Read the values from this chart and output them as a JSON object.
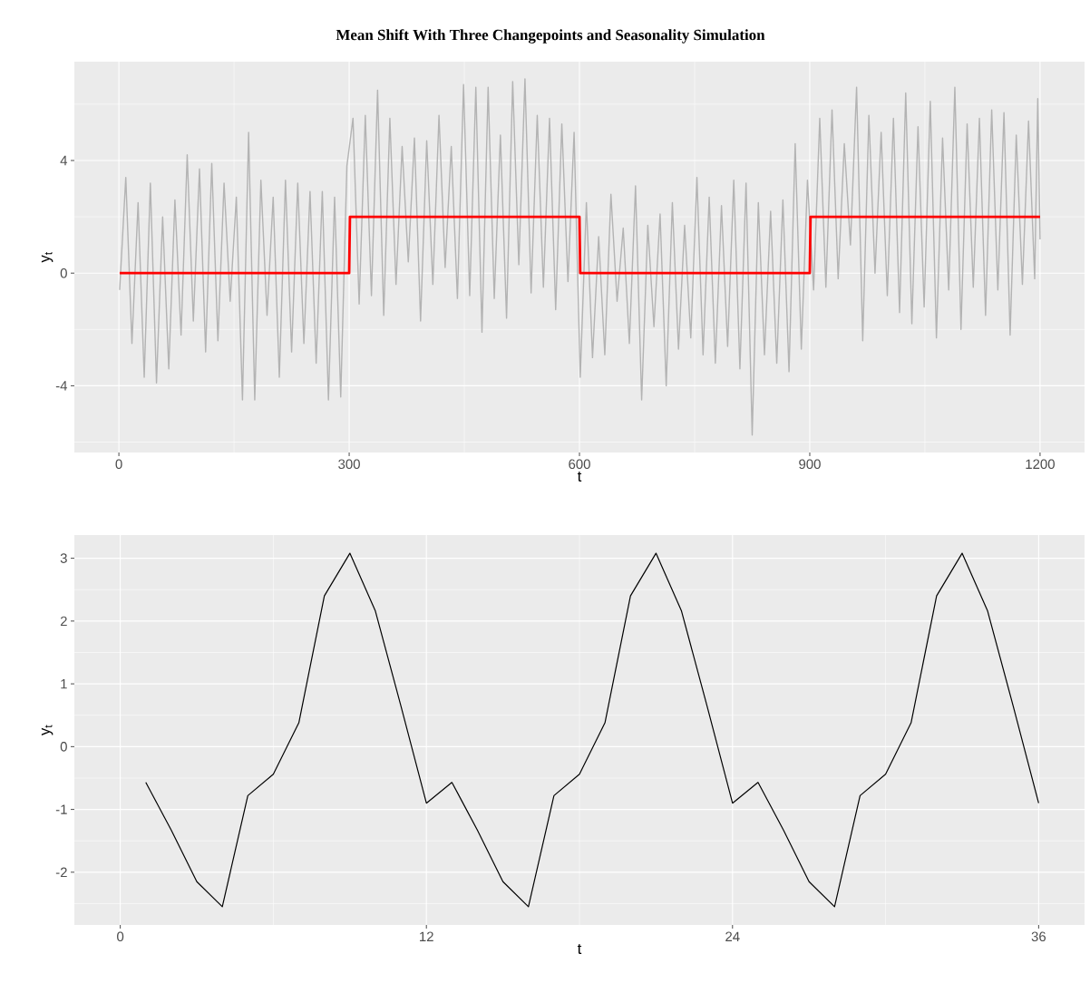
{
  "chart_data": [
    {
      "type": "line",
      "title": "Mean Shift With Three Changepoints and Seasonality Simulation",
      "xlabel": "t",
      "ylabel": "y$_{t}$",
      "xlim": [
        -58,
        1258
      ],
      "ylim": [
        -6.37,
        7.51
      ],
      "xticks": [
        0,
        300,
        600,
        900,
        1200
      ],
      "yticks": [
        -4,
        0,
        4
      ],
      "grid": true,
      "series": [
        {
          "color": "#b3b3b3",
          "x": [
            1,
            9,
            17,
            25,
            33,
            41,
            49,
            57,
            65,
            73,
            81,
            89,
            97,
            105,
            113,
            121,
            129,
            137,
            145,
            153,
            161,
            169,
            177,
            185,
            193,
            201,
            209,
            217,
            225,
            233,
            241,
            249,
            257,
            265,
            273,
            281,
            289,
            297,
            305,
            313,
            321,
            329,
            337,
            345,
            353,
            361,
            369,
            377,
            385,
            393,
            401,
            409,
            417,
            425,
            433,
            441,
            449,
            457,
            465,
            473,
            481,
            489,
            497,
            505,
            513,
            521,
            529,
            537,
            545,
            553,
            561,
            569,
            577,
            585,
            593,
            601,
            609,
            617,
            625,
            633,
            641,
            649,
            657,
            665,
            673,
            681,
            689,
            697,
            705,
            713,
            721,
            729,
            737,
            745,
            753,
            761,
            769,
            777,
            785,
            793,
            801,
            809,
            817,
            825,
            833,
            841,
            849,
            857,
            865,
            873,
            881,
            889,
            897,
            905,
            913,
            921,
            929,
            937,
            945,
            953,
            961,
            969,
            977,
            985,
            993,
            1001,
            1009,
            1017,
            1025,
            1033,
            1041,
            1049,
            1057,
            1065,
            1073,
            1081,
            1089,
            1097,
            1105,
            1113,
            1121,
            1129,
            1137,
            1145,
            1153,
            1161,
            1169,
            1177,
            1185,
            1193,
            1197,
            1200
          ],
          "values": [
            -0.6,
            3.4,
            -2.5,
            2.5,
            -3.7,
            3.2,
            -3.9,
            2.0,
            -3.4,
            2.6,
            -2.2,
            4.2,
            -1.7,
            3.7,
            -2.8,
            3.9,
            -2.4,
            3.2,
            -1.0,
            2.7,
            -4.5,
            5.0,
            -4.5,
            3.3,
            -1.5,
            2.7,
            -3.7,
            3.3,
            -2.8,
            3.2,
            -2.5,
            2.9,
            -3.2,
            2.9,
            -4.5,
            2.7,
            -4.4,
            3.8,
            5.5,
            -1.1,
            5.6,
            -0.8,
            6.5,
            -1.5,
            5.5,
            -0.4,
            4.5,
            0.4,
            4.8,
            -1.7,
            4.7,
            -0.4,
            5.6,
            0.2,
            4.5,
            -0.9,
            6.7,
            -0.8,
            6.6,
            -2.1,
            6.6,
            -0.9,
            4.9,
            -1.6,
            6.8,
            0.3,
            6.9,
            -0.7,
            5.6,
            -0.5,
            5.5,
            -1.3,
            5.3,
            -0.3,
            5.0,
            -3.7,
            2.5,
            -3.0,
            1.3,
            -2.9,
            2.8,
            -1.0,
            1.6,
            -2.5,
            3.1,
            -4.5,
            1.7,
            -1.9,
            2.1,
            -4.0,
            2.5,
            -2.7,
            1.7,
            -2.3,
            3.4,
            -2.9,
            2.7,
            -3.2,
            2.4,
            -2.6,
            3.3,
            -3.4,
            3.2,
            -5.75,
            2.5,
            -2.9,
            2.2,
            -3.2,
            2.6,
            -3.5,
            4.6,
            -2.7,
            3.3,
            -0.6,
            5.5,
            -0.5,
            5.8,
            -0.2,
            4.6,
            1.0,
            6.6,
            -2.4,
            5.6,
            0.0,
            5.0,
            -0.8,
            5.5,
            -1.4,
            6.4,
            -1.8,
            5.2,
            -1.2,
            6.1,
            -2.3,
            4.8,
            -0.6,
            6.6,
            -2.0,
            5.3,
            -0.5,
            5.5,
            -1.5,
            5.8,
            -0.6,
            5.7,
            -2.2,
            4.9,
            -0.4,
            5.4,
            -0.2,
            6.2,
            1.2
          ]
        },
        {
          "color": "#ff0000",
          "x": [
            1,
            300,
            301,
            600,
            601,
            900,
            901,
            1200
          ],
          "values": [
            0,
            0,
            2,
            2,
            0,
            0,
            2,
            2
          ]
        }
      ]
    },
    {
      "type": "line",
      "xlabel": "t",
      "ylabel": "y$_{t}$",
      "xlim": [
        -1.8,
        37.8
      ],
      "ylim": [
        -2.84,
        3.37
      ],
      "xticks": [
        0,
        12,
        24,
        36
      ],
      "yticks": [
        -2,
        -1,
        0,
        1,
        2,
        3
      ],
      "grid": true,
      "x": [
        1,
        2,
        3,
        4,
        5,
        6,
        7,
        8,
        9,
        10,
        11,
        12,
        13,
        14,
        15,
        16,
        17,
        18,
        19,
        20,
        21,
        22,
        23,
        24,
        25,
        26,
        27,
        28,
        29,
        30,
        31,
        32,
        33,
        34,
        35,
        36
      ],
      "series": [
        {
          "color": "#000000",
          "values": [
            -0.57,
            -1.33,
            -2.15,
            -2.55,
            -0.78,
            -0.44,
            0.38,
            2.4,
            3.08,
            2.16,
            0.65,
            -0.9,
            -0.57,
            -1.33,
            -2.15,
            -2.55,
            -0.78,
            -0.44,
            0.38,
            2.4,
            3.08,
            2.16,
            0.65,
            -0.9,
            -0.57,
            -1.33,
            -2.15,
            -2.55,
            -0.78,
            -0.44,
            0.38,
            2.4,
            3.08,
            2.16,
            0.65,
            -0.9
          ]
        }
      ]
    }
  ]
}
